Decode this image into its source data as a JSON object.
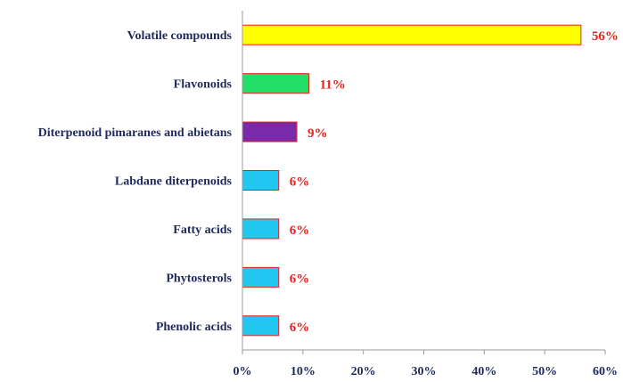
{
  "chart_data": {
    "type": "bar",
    "orientation": "horizontal",
    "categories": [
      "Volatile compounds",
      "Flavonoids",
      "Diterpenoid pimaranes and abietans",
      "Labdane diterpenoids",
      "Fatty acids",
      "Phytosterols",
      "Phenolic acids"
    ],
    "values": [
      56,
      11,
      9,
      6,
      6,
      6,
      6
    ],
    "data_labels": [
      "56%",
      "11%",
      "9%",
      "6%",
      "6%",
      "6%",
      "6%"
    ],
    "bar_colors": [
      "#ffff00",
      "#22dd66",
      "#7a2aa8",
      "#22c8f0",
      "#22c8f0",
      "#22c8f0",
      "#22c8f0"
    ],
    "bar_border_color": "#e8211f",
    "data_label_color": "#e8211f",
    "xlim": [
      0,
      60
    ],
    "xticks": [
      0,
      10,
      20,
      30,
      40,
      50,
      60
    ],
    "xtick_labels": [
      "0%",
      "10%",
      "20%",
      "30%",
      "40%",
      "50%",
      "60%"
    ],
    "grid": false,
    "legend": "none"
  }
}
